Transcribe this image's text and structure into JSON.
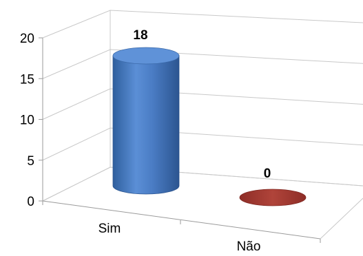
{
  "chart_data": {
    "type": "bar",
    "style": "3d-cylinder",
    "categories": [
      "Sim",
      "Não"
    ],
    "values": [
      18,
      0
    ],
    "data_labels": [
      "18",
      "0"
    ],
    "bar_colors": [
      "#4a7cc4",
      "#a83a32"
    ],
    "yticks": [
      "0",
      "5",
      "10",
      "15",
      "20"
    ],
    "ylim": [
      0,
      20
    ],
    "grid": true,
    "legend": "none"
  }
}
